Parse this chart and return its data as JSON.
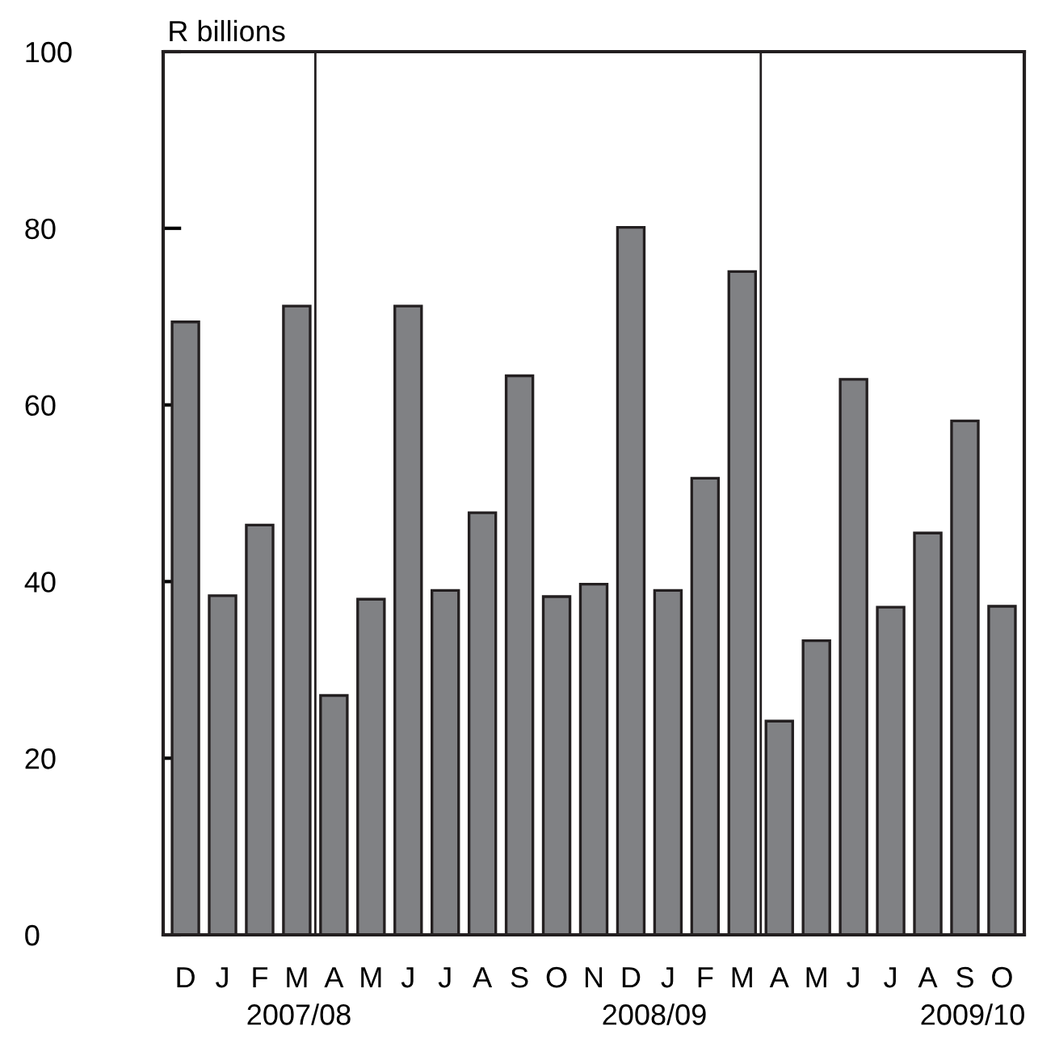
{
  "chart_data": {
    "type": "bar",
    "ylabel": "R billions",
    "categories": [
      "D",
      "J",
      "F",
      "M",
      "A",
      "M",
      "J",
      "J",
      "A",
      "S",
      "O",
      "N",
      "D",
      "J",
      "F",
      "M",
      "A",
      "M",
      "J",
      "J",
      "A",
      "S",
      "O"
    ],
    "values": [
      69.4,
      38.4,
      46.4,
      71.2,
      27.1,
      38.0,
      71.2,
      39.0,
      47.8,
      63.3,
      38.3,
      39.7,
      80.1,
      39.0,
      51.7,
      75.1,
      24.2,
      33.3,
      62.9,
      37.1,
      45.5,
      58.2,
      37.2
    ],
    "color": "#808184",
    "ylim": [
      0,
      100
    ],
    "yticks": [
      0,
      20,
      40,
      60,
      80,
      100
    ],
    "grid": false,
    "annotations": [
      "2007/08",
      "2008/09",
      "2009/10"
    ]
  }
}
